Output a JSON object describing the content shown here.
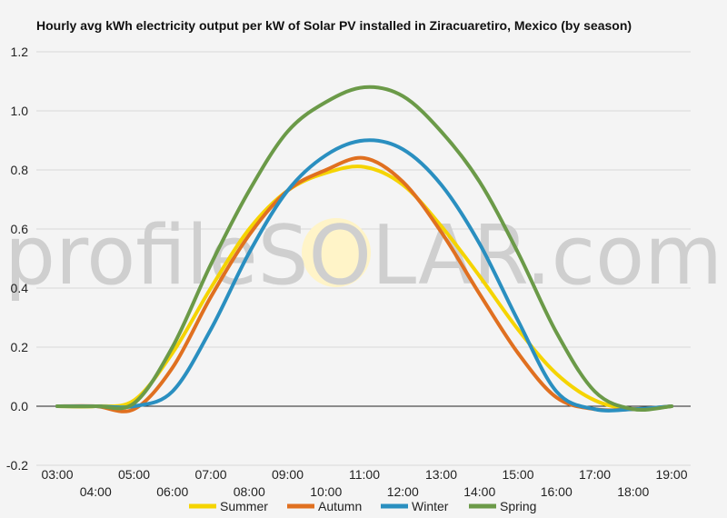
{
  "chart_data": {
    "type": "line",
    "title": "Hourly avg kWh electricity output per kW of Solar PV installed in Ziracuaretiro, Mexico (by season)",
    "watermark": "profileSOLAR.com",
    "xlabel": "",
    "ylabel": "",
    "x": [
      "03:00",
      "04:00",
      "05:00",
      "06:00",
      "07:00",
      "08:00",
      "09:00",
      "10:00",
      "11:00",
      "12:00",
      "13:00",
      "14:00",
      "15:00",
      "16:00",
      "17:00",
      "18:00",
      "19:00"
    ],
    "ylim": [
      -0.2,
      1.2
    ],
    "yticks": [
      "-0.2",
      "0.0",
      "0.2",
      "0.4",
      "0.6",
      "0.8",
      "1.0",
      "1.2"
    ],
    "grid": true,
    "legend_position": "bottom",
    "series": [
      {
        "name": "Summer",
        "color": "#f5d400",
        "values": [
          0,
          0,
          0.02,
          0.18,
          0.4,
          0.6,
          0.73,
          0.79,
          0.81,
          0.75,
          0.61,
          0.44,
          0.26,
          0.11,
          0.02,
          -0.01,
          0
        ]
      },
      {
        "name": "Autumn",
        "color": "#e07020",
        "values": [
          0,
          0,
          -0.01,
          0.13,
          0.37,
          0.58,
          0.73,
          0.8,
          0.84,
          0.76,
          0.59,
          0.38,
          0.18,
          0.03,
          -0.01,
          -0.01,
          0
        ]
      },
      {
        "name": "Winter",
        "color": "#2a8fc0",
        "values": [
          0,
          0,
          0,
          0.05,
          0.26,
          0.52,
          0.73,
          0.85,
          0.9,
          0.87,
          0.75,
          0.55,
          0.29,
          0.05,
          -0.01,
          -0.01,
          0
        ]
      },
      {
        "name": "Spring",
        "color": "#6b9a48",
        "values": [
          0,
          0,
          0.01,
          0.2,
          0.48,
          0.73,
          0.93,
          1.03,
          1.08,
          1.05,
          0.93,
          0.76,
          0.52,
          0.25,
          0.05,
          -0.01,
          0
        ]
      }
    ]
  }
}
